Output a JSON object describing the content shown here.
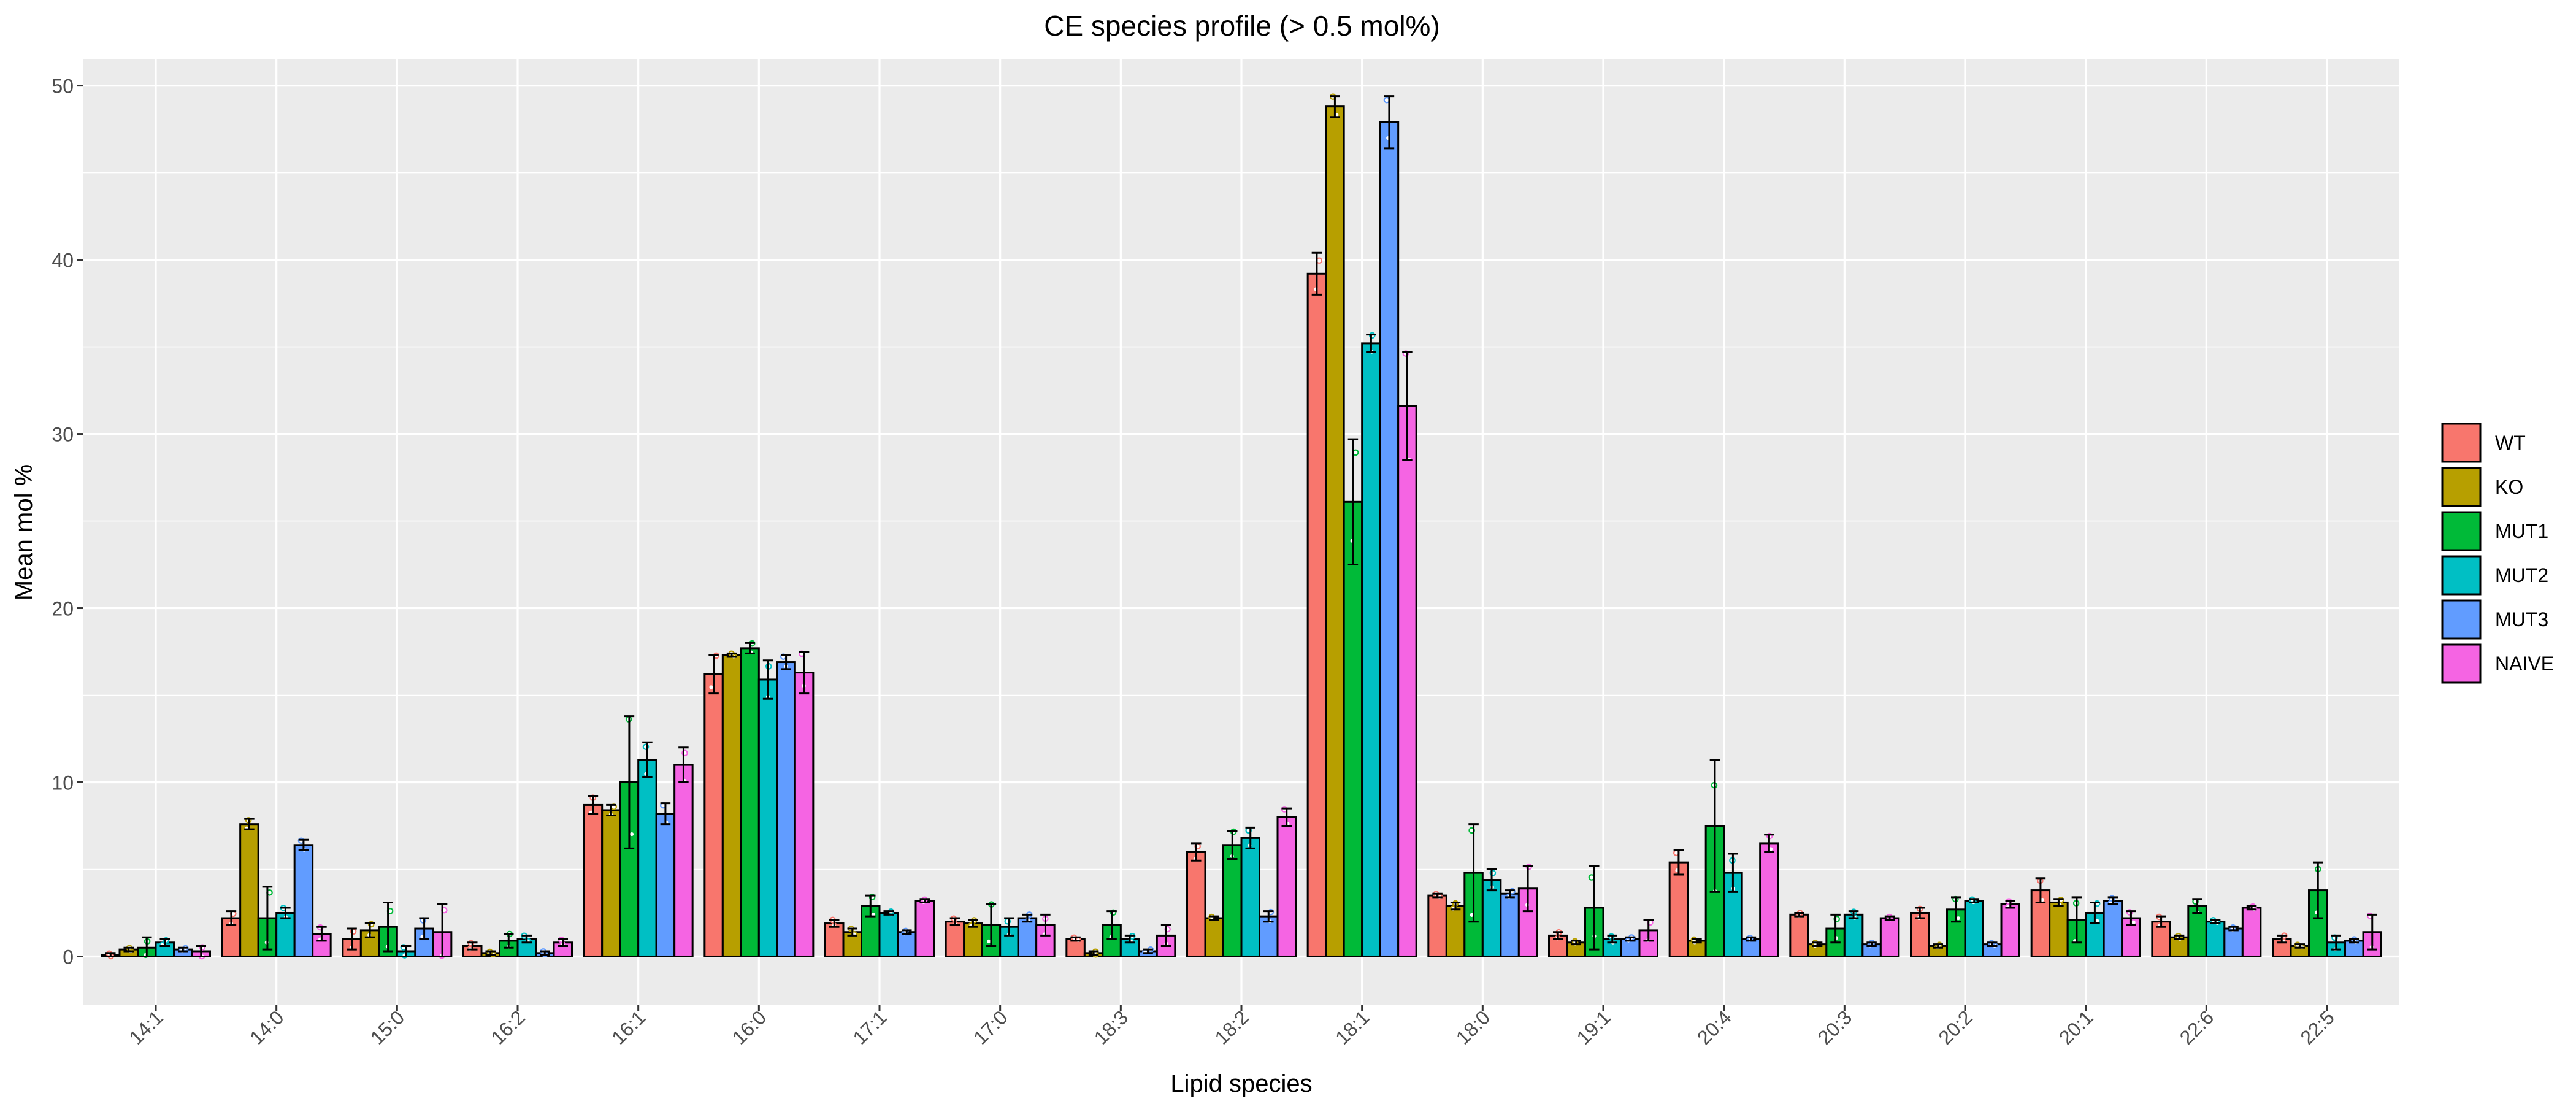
{
  "chart_data": {
    "type": "bar",
    "title": "CE species profile (> 0.5 mol%)",
    "xlabel": "Lipid species",
    "ylabel": "Mean mol %",
    "ylim": [
      -2.8,
      51.5
    ],
    "yticks": [
      0,
      10,
      20,
      30,
      40,
      50
    ],
    "grid": true,
    "legend_position": "right",
    "categories": [
      "14:1",
      "14:0",
      "15:0",
      "16:2",
      "16:1",
      "16:0",
      "17:1",
      "17:0",
      "18:3",
      "18:2",
      "18:1",
      "18:0",
      "19:1",
      "20:4",
      "20:3",
      "20:2",
      "20:1",
      "22:6",
      "22:5"
    ],
    "series": [
      {
        "name": "WT",
        "color": "#F8766D",
        "values": [
          0.1,
          2.2,
          1.0,
          0.6,
          8.7,
          16.2,
          1.9,
          2.0,
          1.0,
          6.0,
          39.2,
          3.5,
          1.2,
          5.4,
          2.4,
          2.5,
          3.8,
          2.0,
          1.0
        ],
        "errors": [
          0.1,
          0.4,
          0.6,
          0.2,
          0.5,
          1.1,
          0.2,
          0.2,
          0.1,
          0.5,
          1.2,
          0.1,
          0.2,
          0.7,
          0.1,
          0.3,
          0.7,
          0.3,
          0.2
        ]
      },
      {
        "name": "KO",
        "color": "#B79F00",
        "values": [
          0.4,
          7.6,
          1.5,
          0.2,
          8.4,
          17.3,
          1.4,
          1.9,
          0.2,
          2.2,
          48.8,
          2.9,
          0.8,
          0.9,
          0.7,
          0.6,
          3.1,
          1.1,
          0.6
        ],
        "errors": [
          0.1,
          0.3,
          0.4,
          0.1,
          0.3,
          0.1,
          0.2,
          0.2,
          0.1,
          0.1,
          0.6,
          0.2,
          0.1,
          0.1,
          0.1,
          0.1,
          0.2,
          0.1,
          0.1
        ]
      },
      {
        "name": "MUT1",
        "color": "#00BA38",
        "values": [
          0.5,
          2.2,
          1.7,
          0.9,
          10.0,
          17.7,
          2.9,
          1.8,
          1.8,
          6.4,
          26.1,
          4.8,
          2.8,
          7.5,
          1.6,
          2.7,
          2.1,
          2.9,
          3.8
        ],
        "errors": [
          0.6,
          1.8,
          1.4,
          0.4,
          3.8,
          0.3,
          0.6,
          1.2,
          0.8,
          0.8,
          3.6,
          2.8,
          2.4,
          3.8,
          0.8,
          0.7,
          1.3,
          0.4,
          1.6
        ]
      },
      {
        "name": "MUT2",
        "color": "#00BFC4",
        "values": [
          0.8,
          2.5,
          0.3,
          1.0,
          11.3,
          15.9,
          2.5,
          1.7,
          1.0,
          6.8,
          35.2,
          4.4,
          1.0,
          4.8,
          2.4,
          3.2,
          2.5,
          2.0,
          0.8
        ],
        "errors": [
          0.2,
          0.3,
          0.3,
          0.2,
          1.0,
          1.1,
          0.1,
          0.5,
          0.2,
          0.6,
          0.5,
          0.6,
          0.2,
          1.1,
          0.2,
          0.1,
          0.6,
          0.1,
          0.4
        ]
      },
      {
        "name": "MUT3",
        "color": "#619CFF",
        "values": [
          0.4,
          6.4,
          1.6,
          0.2,
          8.2,
          16.9,
          1.4,
          2.2,
          0.3,
          2.3,
          47.9,
          3.6,
          1.0,
          1.0,
          0.7,
          0.7,
          3.2,
          1.6,
          0.9
        ],
        "errors": [
          0.1,
          0.3,
          0.6,
          0.1,
          0.6,
          0.4,
          0.1,
          0.2,
          0.1,
          0.3,
          1.5,
          0.2,
          0.1,
          0.1,
          0.1,
          0.1,
          0.2,
          0.1,
          0.1
        ]
      },
      {
        "name": "NAIVE",
        "color": "#F564E3",
        "values": [
          0.3,
          1.3,
          1.4,
          0.8,
          11.0,
          16.3,
          3.2,
          1.8,
          1.2,
          8.0,
          31.6,
          3.9,
          1.5,
          6.5,
          2.2,
          3.0,
          2.2,
          2.8,
          1.4
        ],
        "errors": [
          0.3,
          0.4,
          1.6,
          0.2,
          1.0,
          1.2,
          0.1,
          0.6,
          0.6,
          0.5,
          3.1,
          1.3,
          0.6,
          0.5,
          0.1,
          0.2,
          0.4,
          0.1,
          1.0
        ]
      }
    ]
  }
}
